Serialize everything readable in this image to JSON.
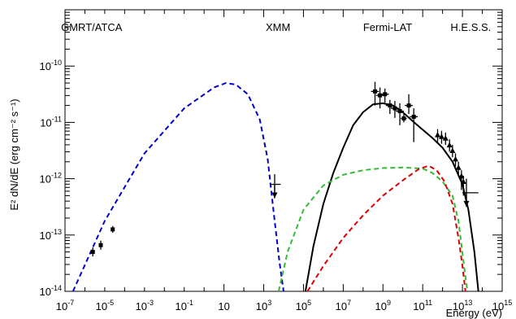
{
  "chart_data": {
    "type": "scatter",
    "xlabel": "Energy (eV)",
    "ylabel": "E² dN/dE (erg cm⁻² s⁻¹)",
    "xscale": "log",
    "yscale": "log",
    "xlim": [
      1e-07,
      1000000000000000.0
    ],
    "ylim": [
      1e-14,
      1e-09
    ],
    "grid": false,
    "x_ticks": [
      {
        "exp": -7,
        "base": "10",
        "sup": "-7"
      },
      {
        "exp": -5,
        "base": "10",
        "sup": "-5"
      },
      {
        "exp": -3,
        "base": "10",
        "sup": "-3"
      },
      {
        "exp": -1,
        "base": "10",
        "sup": "-1"
      },
      {
        "exp": 1,
        "base": "10",
        "sup": ""
      },
      {
        "exp": 3,
        "base": "10",
        "sup": "3"
      },
      {
        "exp": 5,
        "base": "10",
        "sup": "5"
      },
      {
        "exp": 7,
        "base": "10",
        "sup": "7"
      },
      {
        "exp": 9,
        "base": "10",
        "sup": "9"
      },
      {
        "exp": 11,
        "base": "10",
        "sup": "11"
      },
      {
        "exp": 13,
        "base": "10",
        "sup": "13"
      },
      {
        "exp": 15,
        "base": "10",
        "sup": "15"
      }
    ],
    "y_ticks": [
      {
        "exp": -10,
        "base": "10",
        "sup": "-10"
      },
      {
        "exp": -11,
        "base": "10",
        "sup": "-11"
      },
      {
        "exp": -12,
        "base": "10",
        "sup": "-12"
      },
      {
        "exp": -13,
        "base": "10",
        "sup": "-13"
      },
      {
        "exp": -14,
        "base": "10",
        "sup": "-14"
      }
    ],
    "annotations": [
      {
        "text": "GMRT/ATCA",
        "x_exp": -7.2
      },
      {
        "text": "XMM",
        "x_exp": 3.1
      },
      {
        "text": "Fermi-LAT",
        "x_exp": 8.0
      },
      {
        "text": "H.E.S.S.",
        "x_exp": 12.4
      }
    ],
    "colors": {
      "synchrotron": "#0000cc",
      "total": "#000000",
      "component_green": "#33bb33",
      "component_red": "#dd0000",
      "data": "#000000"
    },
    "series": [
      {
        "style": "dashed",
        "color": "#0000cc",
        "points": [
          [
            -6.6,
            -14
          ],
          [
            -5,
            -12.75
          ],
          [
            -3,
            -11.55
          ],
          [
            -1,
            -10.75
          ],
          [
            0.5,
            -10.38
          ],
          [
            1.1,
            -10.3
          ],
          [
            1.6,
            -10.33
          ],
          [
            2.2,
            -10.5
          ],
          [
            2.8,
            -10.95
          ],
          [
            3.2,
            -11.65
          ],
          [
            3.5,
            -12.6
          ],
          [
            3.8,
            -13.5
          ],
          [
            4.0,
            -14
          ]
        ]
      },
      {
        "style": "solid",
        "color": "#000000",
        "points": [
          [
            5.1,
            -14
          ],
          [
            5.5,
            -13.2
          ],
          [
            6,
            -12.45
          ],
          [
            6.5,
            -11.9
          ],
          [
            7,
            -11.45
          ],
          [
            7.5,
            -11.05
          ],
          [
            8,
            -10.82
          ],
          [
            8.5,
            -10.68
          ],
          [
            9,
            -10.66
          ],
          [
            9.5,
            -10.7
          ],
          [
            10,
            -10.82
          ],
          [
            10.5,
            -10.98
          ],
          [
            11,
            -11.13
          ],
          [
            11.5,
            -11.28
          ],
          [
            12,
            -11.45
          ],
          [
            12.5,
            -11.7
          ],
          [
            13,
            -12.1
          ],
          [
            13.3,
            -12.55
          ],
          [
            13.6,
            -13.3
          ],
          [
            13.8,
            -14
          ]
        ]
      },
      {
        "style": "dashed",
        "color": "#33bb33",
        "points": [
          [
            3.75,
            -14
          ],
          [
            4.2,
            -13.3
          ],
          [
            5,
            -12.55
          ],
          [
            6,
            -12.12
          ],
          [
            7,
            -11.93
          ],
          [
            8,
            -11.85
          ],
          [
            9,
            -11.81
          ],
          [
            10,
            -11.8
          ],
          [
            11,
            -11.82
          ],
          [
            11.5,
            -11.9
          ],
          [
            12,
            -12.05
          ],
          [
            12.5,
            -12.3
          ],
          [
            12.8,
            -12.75
          ],
          [
            13.1,
            -13.6
          ],
          [
            13.25,
            -14
          ]
        ]
      },
      {
        "style": "dashed",
        "color": "#dd0000",
        "points": [
          [
            5.2,
            -14
          ],
          [
            6,
            -13.55
          ],
          [
            7,
            -13.05
          ],
          [
            8,
            -12.65
          ],
          [
            9,
            -12.3
          ],
          [
            10,
            -12.03
          ],
          [
            10.8,
            -11.83
          ],
          [
            11.3,
            -11.77
          ],
          [
            11.7,
            -11.85
          ],
          [
            12.1,
            -12.05
          ],
          [
            12.5,
            -12.45
          ],
          [
            12.8,
            -13.05
          ],
          [
            13.0,
            -13.55
          ],
          [
            13.15,
            -14
          ]
        ]
      }
    ],
    "points": [
      {
        "x": -5.6,
        "y": -13.3,
        "ylo": -13.38,
        "yhi": -13.22,
        "xlo": -5.6,
        "xhi": -5.6,
        "m": "sq"
      },
      {
        "x": -5.2,
        "y": -13.18,
        "ylo": -13.26,
        "yhi": -13.1,
        "xlo": -5.2,
        "xhi": -5.2,
        "m": "sq"
      },
      {
        "x": -4.6,
        "y": -12.9,
        "ylo": -12.96,
        "yhi": -12.84,
        "xlo": -4.6,
        "xhi": -4.6,
        "m": "sq"
      },
      {
        "x": 3.55,
        "y": -12.1,
        "ylo": -12.35,
        "yhi": -11.92,
        "xlo": 3.3,
        "xhi": 3.85,
        "m": "ul"
      },
      {
        "x": 8.6,
        "y": -10.45,
        "ylo": -10.7,
        "yhi": -10.28,
        "xlo": 8.4,
        "xhi": 8.8,
        "m": "sq"
      },
      {
        "x": 8.85,
        "y": -10.52,
        "ylo": -10.75,
        "yhi": -10.38,
        "xlo": 8.65,
        "xhi": 9.05,
        "m": "sq"
      },
      {
        "x": 9.1,
        "y": -10.5,
        "ylo": -10.65,
        "yhi": -10.4,
        "xlo": 8.9,
        "xhi": 9.3,
        "m": "sq"
      },
      {
        "x": 9.35,
        "y": -10.7,
        "ylo": -10.85,
        "yhi": -10.6,
        "xlo": 9.15,
        "xhi": 9.55,
        "m": "sq"
      },
      {
        "x": 9.6,
        "y": -10.75,
        "ylo": -10.92,
        "yhi": -10.62,
        "xlo": 9.4,
        "xhi": 9.8,
        "m": "sq"
      },
      {
        "x": 9.85,
        "y": -10.8,
        "ylo": -11.05,
        "yhi": -10.66,
        "xlo": 9.65,
        "xhi": 10.05,
        "m": "sq"
      },
      {
        "x": 10.05,
        "y": -10.93,
        "ylo": -11.0,
        "yhi": -10.85,
        "xlo": 9.9,
        "xhi": 10.2,
        "m": "sq"
      },
      {
        "x": 10.3,
        "y": -10.7,
        "ylo": -10.85,
        "yhi": -10.5,
        "xlo": 10.1,
        "xhi": 10.5,
        "m": "sq"
      },
      {
        "x": 10.55,
        "y": -10.9,
        "ylo": -11.35,
        "yhi": -10.75,
        "xlo": 10.35,
        "xhi": 10.75,
        "m": "sq"
      },
      {
        "x": 11.75,
        "y": -11.22,
        "ylo": -11.35,
        "yhi": -11.12,
        "xlo": 11.75,
        "xhi": 11.75,
        "m": "tri"
      },
      {
        "x": 11.95,
        "y": -11.25,
        "ylo": -11.38,
        "yhi": -11.15,
        "xlo": 11.95,
        "xhi": 11.95,
        "m": "tri"
      },
      {
        "x": 12.15,
        "y": -11.28,
        "ylo": -11.4,
        "yhi": -11.18,
        "xlo": 12.15,
        "xhi": 12.15,
        "m": "tri"
      },
      {
        "x": 12.35,
        "y": -11.4,
        "ylo": -11.52,
        "yhi": -11.3,
        "xlo": 12.35,
        "xhi": 12.35,
        "m": "tri"
      },
      {
        "x": 12.5,
        "y": -11.5,
        "ylo": -11.62,
        "yhi": -11.4,
        "xlo": 12.5,
        "xhi": 12.5,
        "m": "tri"
      },
      {
        "x": 12.65,
        "y": -11.65,
        "ylo": -11.78,
        "yhi": -11.55,
        "xlo": 12.65,
        "xhi": 12.65,
        "m": "tri"
      },
      {
        "x": 12.8,
        "y": -11.8,
        "ylo": -11.95,
        "yhi": -11.7,
        "xlo": 12.8,
        "xhi": 12.8,
        "m": "tri"
      },
      {
        "x": 12.95,
        "y": -11.95,
        "ylo": -12.2,
        "yhi": -11.85,
        "xlo": 12.95,
        "xhi": 12.95,
        "m": "tri"
      },
      {
        "x": 13.05,
        "y": -12.05,
        "ylo": -12.3,
        "yhi": -11.95,
        "xlo": 13.05,
        "xhi": 13.05,
        "m": "tri"
      },
      {
        "x": 13.2,
        "y": -12.25,
        "ylo": -12.5,
        "yhi": -12.0,
        "xlo": 13.0,
        "xhi": 13.8,
        "m": "ul"
      }
    ]
  }
}
